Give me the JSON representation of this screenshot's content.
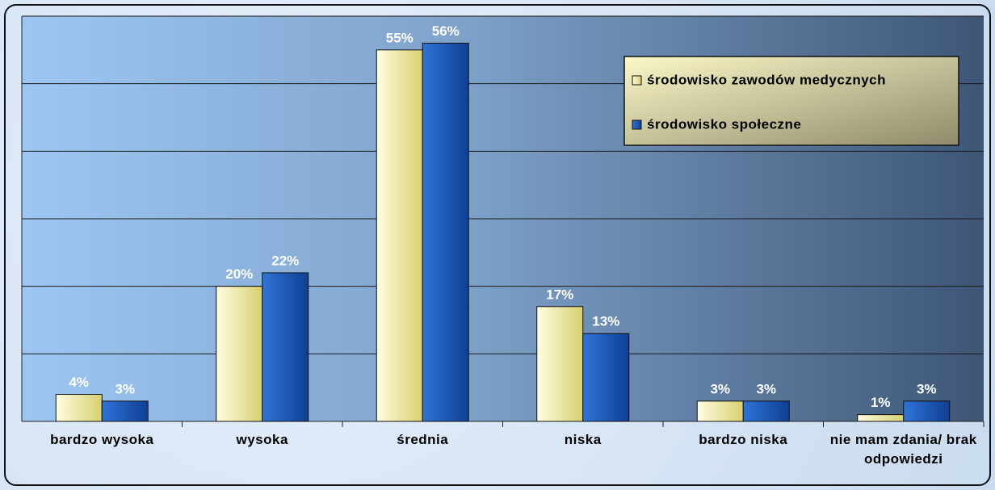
{
  "chart_data": {
    "type": "bar",
    "categories": [
      "bardzo wysoka",
      "wysoka",
      "średnia",
      "niska",
      "bardzo niska",
      "nie mam zdania/ brak odpowiedzi"
    ],
    "series": [
      {
        "name": "środowisko zawodów medycznych",
        "color": "#f3ee9a",
        "values": [
          4,
          20,
          55,
          17,
          3,
          1
        ],
        "value_labels": [
          "4%",
          "20%",
          "55%",
          "17%",
          "3%",
          "1%"
        ]
      },
      {
        "name": "środowisko społeczne",
        "color": "#1f5fbf",
        "values": [
          3,
          22,
          56,
          13,
          3,
          3
        ],
        "value_labels": [
          "3%",
          "22%",
          "56%",
          "13%",
          "3%",
          "3%"
        ]
      }
    ],
    "ylim": [
      0,
      60
    ],
    "yticks": [
      0,
      10,
      20,
      30,
      40,
      50,
      60
    ],
    "grid": true,
    "legend": "upper right"
  }
}
